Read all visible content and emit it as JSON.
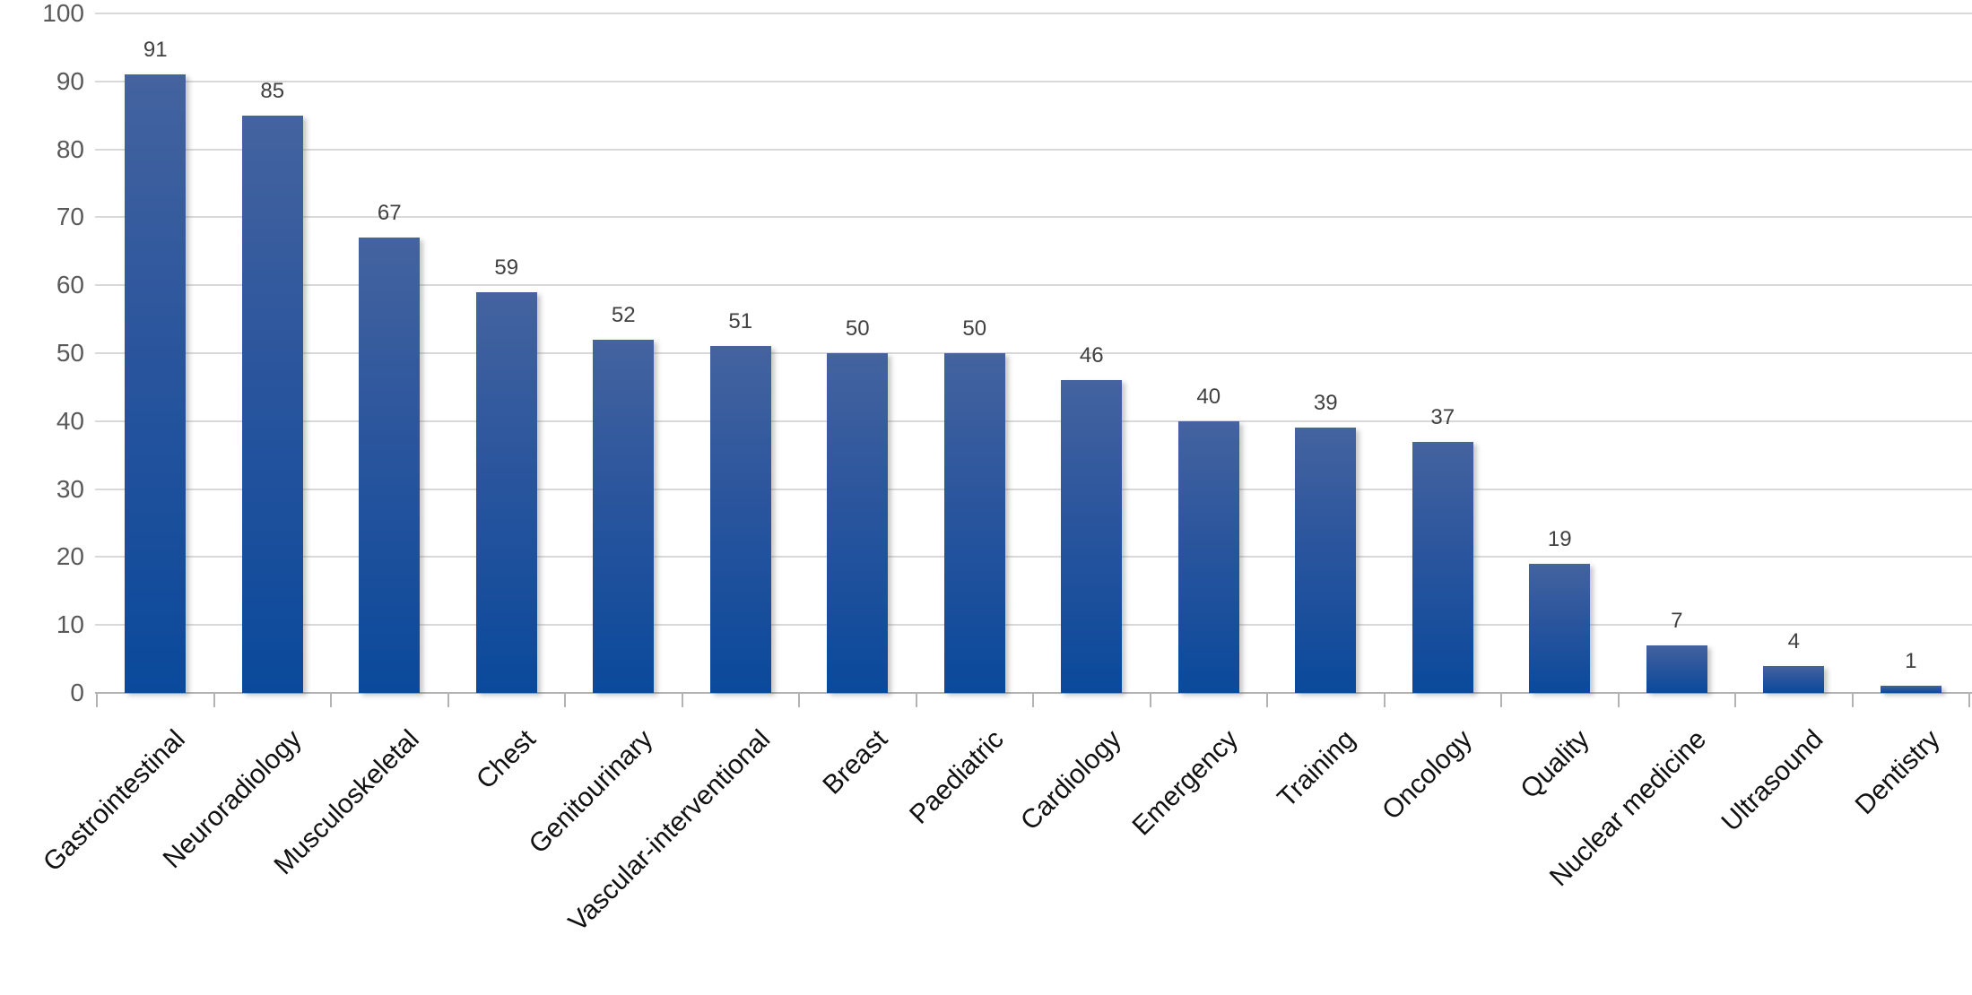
{
  "chart_data": {
    "type": "bar",
    "categories": [
      "Gastrointestinal",
      "Neuroradiology",
      "Musculoskeletal",
      "Chest",
      "Genitourinary",
      "Vascular-interventional",
      "Breast",
      "Paediatric",
      "Cardiology",
      "Emergency",
      "Training",
      "Oncology",
      "Quality",
      "Nuclear medicine",
      "Ultrasound",
      "Dentistry"
    ],
    "values": [
      91,
      85,
      67,
      59,
      52,
      51,
      50,
      50,
      46,
      40,
      39,
      37,
      19,
      7,
      4,
      1
    ],
    "data_labels": [
      "91",
      "85",
      "67",
      "59",
      "52",
      "51",
      "50",
      "50",
      "46",
      "40",
      "39",
      "37",
      "19",
      "7",
      "4",
      "1"
    ],
    "y_tick_labels": [
      "0",
      "10",
      "20",
      "30",
      "40",
      "50",
      "60",
      "70",
      "80",
      "90",
      "100"
    ],
    "title": "",
    "xlabel": "",
    "ylabel": "",
    "ylim": [
      0,
      100
    ],
    "ytick_step": 10,
    "grid": true,
    "legend_position": "none",
    "colors": {
      "bar_gradient_top": "#44639f",
      "bar_gradient_mid": "#2a559d",
      "bar_gradient_bottom": "#0a499c",
      "bar_shadow": "rgba(100,100,100,0.35)",
      "gridline": "#d9d9d9",
      "axis_line": "#b3b3b3",
      "y_label_color": "#595959",
      "data_label_color": "#404040",
      "category_label_color": "#111111"
    }
  }
}
